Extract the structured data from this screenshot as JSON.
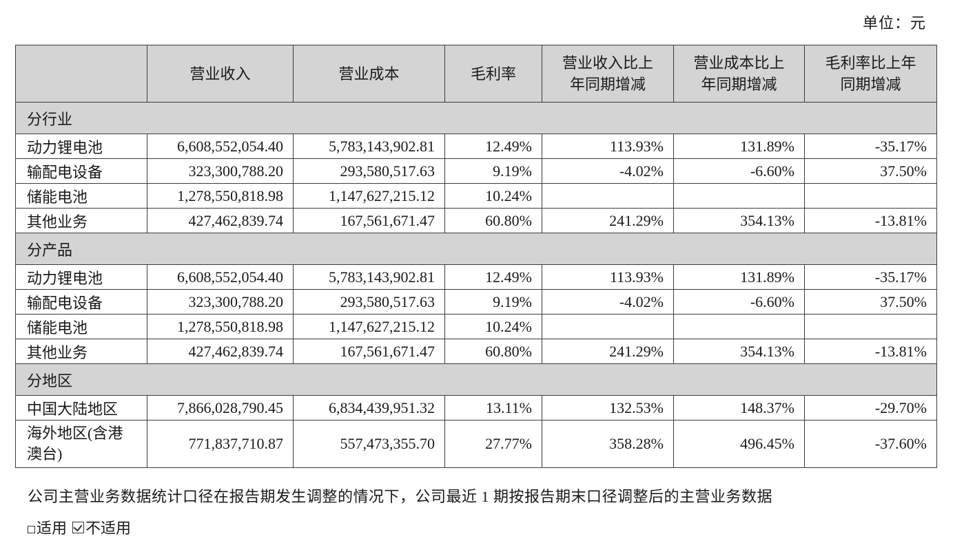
{
  "unit_label": "单位：元",
  "table": {
    "headers": [
      "",
      "营业收入",
      "营业成本",
      "毛利率",
      "营业收入比上年同期增减",
      "营业成本比上年同期增减",
      "毛利率比上年同期增减"
    ],
    "header_lines": {
      "c4": [
        "营业收入比上",
        "年同期增减"
      ],
      "c5": [
        "营业成本比上",
        "年同期增减"
      ],
      "c6": [
        "毛利率比上年",
        "同期增减"
      ]
    },
    "sections": [
      {
        "title": "分行业",
        "rows": [
          {
            "label": "动力锂电池",
            "revenue": "6,608,552,054.40",
            "cost": "5,783,143,902.81",
            "margin": "12.49%",
            "rev_yoy": "113.93%",
            "cost_yoy": "131.89%",
            "margin_yoy": "-35.17%"
          },
          {
            "label": "输配电设备",
            "revenue": "323,300,788.20",
            "cost": "293,580,517.63",
            "margin": "9.19%",
            "rev_yoy": "-4.02%",
            "cost_yoy": "-6.60%",
            "margin_yoy": "37.50%"
          },
          {
            "label": "储能电池",
            "revenue": "1,278,550,818.98",
            "cost": "1,147,627,215.12",
            "margin": "10.24%",
            "rev_yoy": "",
            "cost_yoy": "",
            "margin_yoy": ""
          },
          {
            "label": "其他业务",
            "revenue": "427,462,839.74",
            "cost": "167,561,671.47",
            "margin": "60.80%",
            "rev_yoy": "241.29%",
            "cost_yoy": "354.13%",
            "margin_yoy": "-13.81%"
          }
        ]
      },
      {
        "title": "分产品",
        "rows": [
          {
            "label": "动力锂电池",
            "revenue": "6,608,552,054.40",
            "cost": "5,783,143,902.81",
            "margin": "12.49%",
            "rev_yoy": "113.93%",
            "cost_yoy": "131.89%",
            "margin_yoy": "-35.17%"
          },
          {
            "label": "输配电设备",
            "revenue": "323,300,788.20",
            "cost": "293,580,517.63",
            "margin": "9.19%",
            "rev_yoy": "-4.02%",
            "cost_yoy": "-6.60%",
            "margin_yoy": "37.50%"
          },
          {
            "label": "储能电池",
            "revenue": "1,278,550,818.98",
            "cost": "1,147,627,215.12",
            "margin": "10.24%",
            "rev_yoy": "",
            "cost_yoy": "",
            "margin_yoy": ""
          },
          {
            "label": "其他业务",
            "revenue": "427,462,839.74",
            "cost": "167,561,671.47",
            "margin": "60.80%",
            "rev_yoy": "241.29%",
            "cost_yoy": "354.13%",
            "margin_yoy": "-13.81%"
          }
        ]
      },
      {
        "title": "分地区",
        "rows": [
          {
            "label": "中国大陆地区",
            "revenue": "7,866,028,790.45",
            "cost": "6,834,439,951.32",
            "margin": "13.11%",
            "rev_yoy": "132.53%",
            "cost_yoy": "148.37%",
            "margin_yoy": "-29.70%"
          },
          {
            "label": "海外地区(含港澳台)",
            "revenue": "771,837,710.87",
            "cost": "557,473,355.70",
            "margin": "27.77%",
            "rev_yoy": "358.28%",
            "cost_yoy": "496.45%",
            "margin_yoy": "-37.60%"
          }
        ]
      }
    ]
  },
  "note": "公司主营业务数据统计口径在报告期发生调整的情况下，公司最近 1 期按报告期末口径调整后的主营业务数据",
  "options": {
    "applicable_label": "适用",
    "applicable_checked": false,
    "not_applicable_label": "不适用",
    "not_applicable_checked": true
  }
}
